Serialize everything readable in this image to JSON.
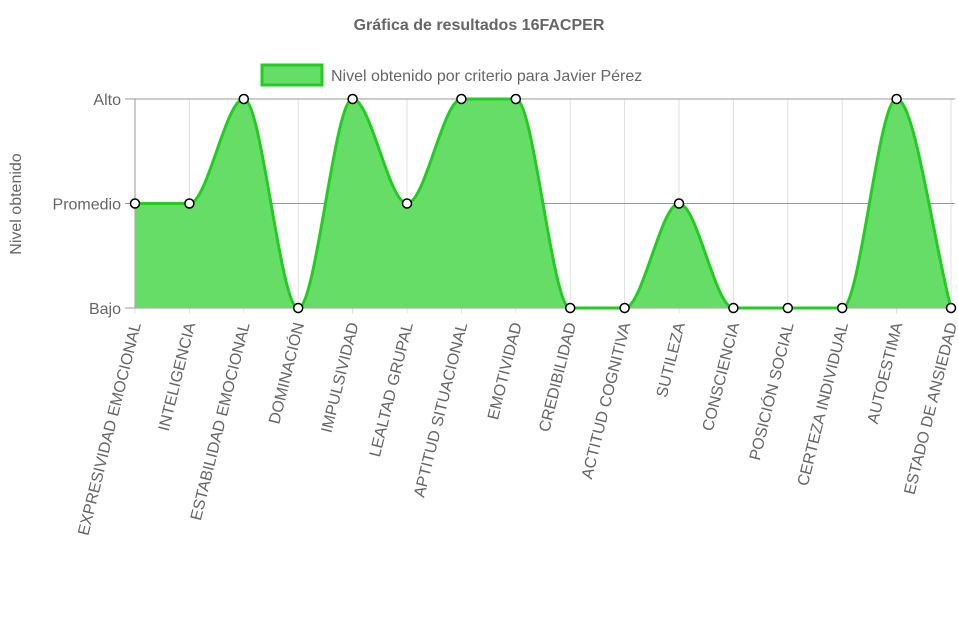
{
  "chart_data": {
    "type": "area",
    "title": "Gráfica de resultados 16FACPER",
    "xlabel": "",
    "ylabel": "Nivel obtenido",
    "categories": [
      "EXPRESIVIDAD EMOCIONAL",
      "INTELIGENCIA",
      "ESTABILIDAD EMOCIONAL",
      "DOMINACIÓN",
      "IMPULSIVIDAD",
      "LEALTAD GRUPAL",
      "APTITUD SITUACIONAL",
      "EMOTIVIDAD",
      "CREDIBILIDAD",
      "ACTITUD COGNITIVA",
      "SUTILEZA",
      "CONSCIENCIA",
      "POSICIÓN SOCIAL",
      "CERTEZA INDIVIDUAL",
      "AUTOESTIMA",
      "ESTADO DE ANSIEDAD"
    ],
    "y_levels": [
      "Bajo",
      "Promedio",
      "Alto"
    ],
    "ylim": [
      0,
      2
    ],
    "series": [
      {
        "name": "Nivel obtenido por criterio para Javier Pérez",
        "values": [
          1,
          1,
          2,
          0,
          2,
          1,
          2,
          2,
          0,
          0,
          1,
          0,
          0,
          0,
          2,
          0
        ]
      }
    ],
    "colors": {
      "fill": "#66dd66",
      "line": "#22cc22",
      "point_fill": "#ffffff",
      "point_stroke": "#000000",
      "grid": "#e0e0e0",
      "level_grid": "#999999",
      "axis": "#999999",
      "text": "#666666"
    },
    "grid": true,
    "legend_position": "top"
  }
}
